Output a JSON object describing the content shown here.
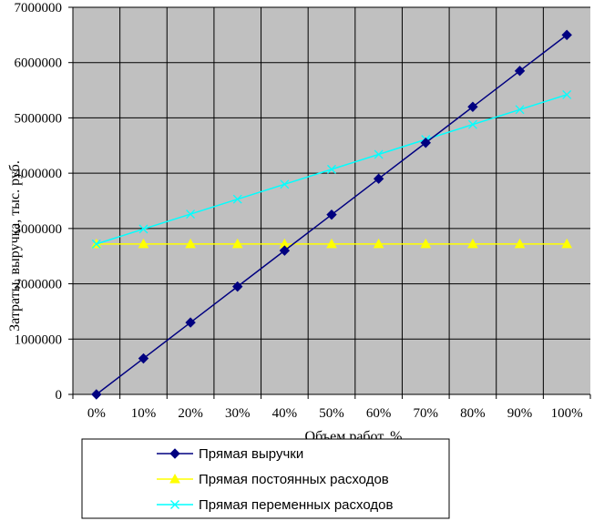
{
  "chart_data": {
    "type": "line",
    "categories": [
      "0%",
      "10%",
      "20%",
      "30%",
      "40%",
      "50%",
      "60%",
      "70%",
      "80%",
      "90%",
      "100%"
    ],
    "xlabel": "Объем работ, %",
    "ylabel": "Затраты, выручка, тыс. руб.",
    "ylim": [
      0,
      7000000
    ],
    "yticks": [
      "0",
      "1000000",
      "2000000",
      "3000000",
      "4000000",
      "5000000",
      "6000000",
      "7000000"
    ],
    "grid": true,
    "legend_position": "bottom",
    "series": [
      {
        "name": "Прямая выручки",
        "color": "#000080",
        "marker": "diamond",
        "values": [
          0,
          650000,
          1300000,
          1950000,
          2600000,
          3250000,
          3900000,
          4550000,
          5200000,
          5850000,
          6500000
        ]
      },
      {
        "name": "Прямая постоянных расходов",
        "color": "#ffff00",
        "marker": "triangle",
        "values": [
          2720000,
          2720000,
          2720000,
          2720000,
          2720000,
          2720000,
          2720000,
          2720000,
          2720000,
          2720000,
          2720000
        ]
      },
      {
        "name": "Прямая переменных расходов",
        "color": "#00ffff",
        "marker": "x",
        "values": [
          2720000,
          2990000,
          3260000,
          3530000,
          3800000,
          4070000,
          4340000,
          4610000,
          4880000,
          5150000,
          5420000
        ]
      }
    ]
  }
}
